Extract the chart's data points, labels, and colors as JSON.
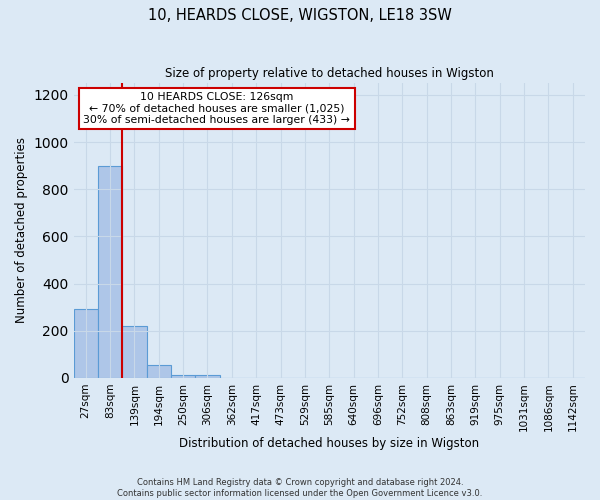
{
  "title": "10, HEARDS CLOSE, WIGSTON, LE18 3SW",
  "subtitle": "Size of property relative to detached houses in Wigston",
  "xlabel": "Distribution of detached houses by size in Wigston",
  "ylabel": "Number of detached properties",
  "footer_line1": "Contains HM Land Registry data © Crown copyright and database right 2024.",
  "footer_line2": "Contains public sector information licensed under the Open Government Licence v3.0.",
  "bin_labels": [
    "27sqm",
    "83sqm",
    "139sqm",
    "194sqm",
    "250sqm",
    "306sqm",
    "362sqm",
    "417sqm",
    "473sqm",
    "529sqm",
    "585sqm",
    "640sqm",
    "696sqm",
    "752sqm",
    "808sqm",
    "863sqm",
    "919sqm",
    "975sqm",
    "1031sqm",
    "1086sqm",
    "1142sqm"
  ],
  "bar_heights": [
    290,
    900,
    220,
    55,
    10,
    10,
    0,
    0,
    0,
    0,
    0,
    0,
    0,
    0,
    0,
    0,
    0,
    0,
    0,
    0,
    0
  ],
  "bar_color": "#aec6e8",
  "bar_edge_color": "#5b9bd5",
  "property_line_color": "#cc0000",
  "ylim": [
    0,
    1250
  ],
  "yticks": [
    0,
    200,
    400,
    600,
    800,
    1000,
    1200
  ],
  "annotation_text": "10 HEARDS CLOSE: 126sqm\n← 70% of detached houses are smaller (1,025)\n30% of semi-detached houses are larger (433) →",
  "annotation_box_color": "#ffffff",
  "annotation_box_edgecolor": "#cc0000",
  "grid_color": "#c8d8e8",
  "bg_color": "#dce9f5"
}
